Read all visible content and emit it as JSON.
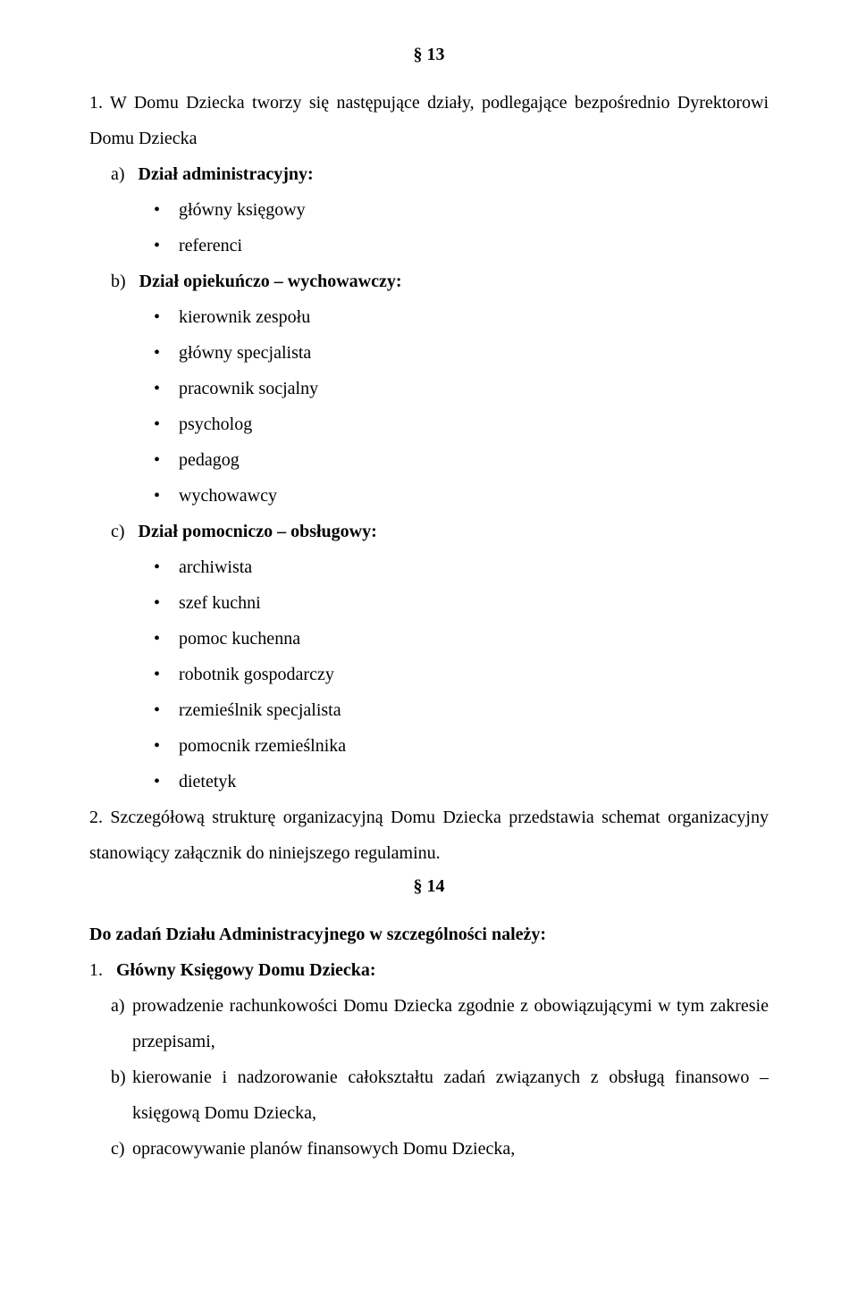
{
  "colors": {
    "background": "#ffffff",
    "text": "#000000"
  },
  "typography": {
    "font_family": "Times New Roman",
    "body_fontsize_pt": 15,
    "line_height": 2.0,
    "heading_bold": true
  },
  "section13": {
    "number": "§ 13",
    "para1_lead": "1. W Domu Dziecka tworzy się następujące działy, podlegające bezpośrednio Dyrektorowi Domu Dziecka",
    "a": {
      "label": "a)",
      "title": "Dział administracyjny:",
      "items": [
        "główny księgowy",
        "referenci"
      ]
    },
    "b": {
      "label": "b)",
      "title": "Dział opiekuńczo – wychowawczy:",
      "items": [
        "kierownik zespołu",
        "główny specjalista",
        "pracownik socjalny",
        "psycholog",
        "pedagog",
        "wychowawcy"
      ]
    },
    "c": {
      "label": "c)",
      "title": "Dział pomocniczo – obsługowy:",
      "items": [
        "archiwista",
        "szef kuchni",
        "pomoc kuchenna",
        "robotnik gospodarczy",
        "rzemieślnik specjalista",
        "pomocnik rzemieślnika",
        "dietetyk"
      ]
    },
    "para2": "2. Szczegółową strukturę organizacyjną Domu Dziecka przedstawia schemat organizacyjny stanowiący załącznik do niniejszego regulaminu."
  },
  "section14": {
    "number": "§ 14",
    "heading": "Do zadań Działu Administracyjnego w szczególności należy:",
    "item1": {
      "num": "1.",
      "title": "Główny Księgowy Domu Dziecka:",
      "letters": [
        {
          "marker": "a)",
          "text": "prowadzenie rachunkowości Domu Dziecka zgodnie z obowiązującymi w tym zakresie przepisami,"
        },
        {
          "marker": "b)",
          "text": "kierowanie i nadzorowanie całokształtu zadań związanych z obsługą finansowo – księgową Domu Dziecka,"
        },
        {
          "marker": "c)",
          "text": "opracowywanie planów finansowych Domu Dziecka,"
        }
      ]
    }
  }
}
